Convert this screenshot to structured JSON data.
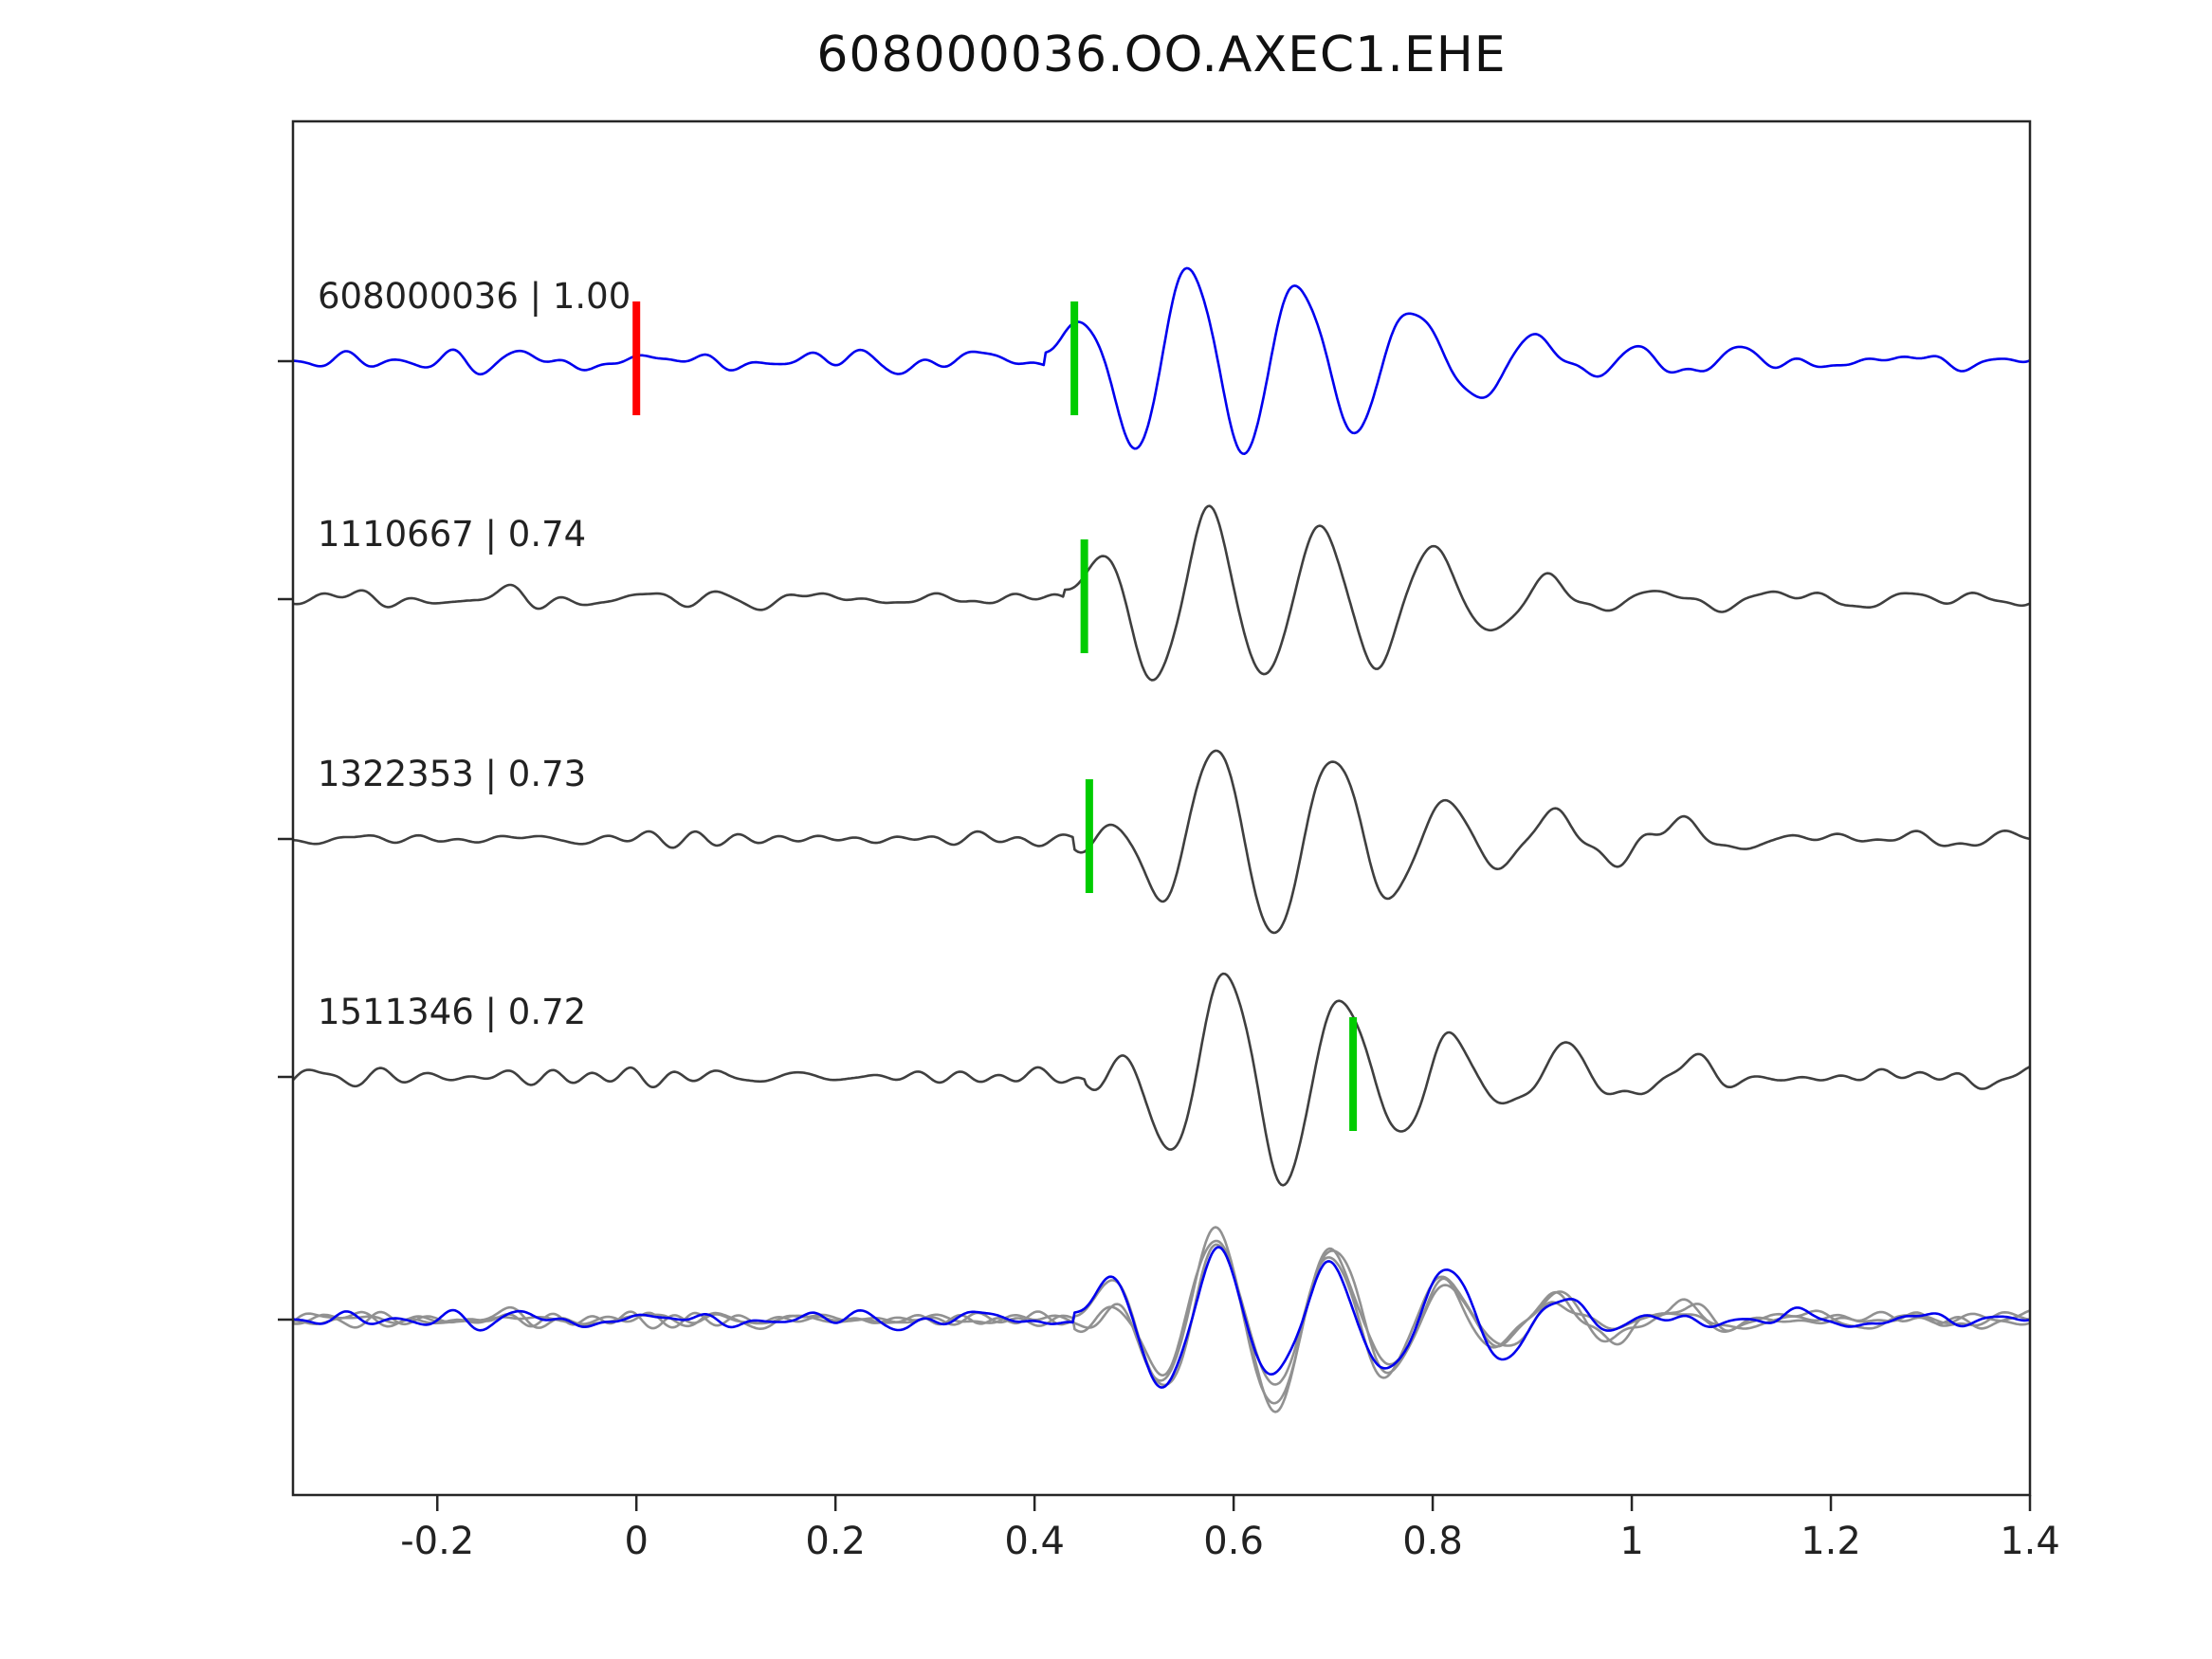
{
  "title": "608000036.OO.AXEC1.EHE",
  "chart_data": {
    "type": "line",
    "title": "608000036.OO.AXEC1.EHE",
    "xlabel": "",
    "ylabel": "",
    "xlim": [
      -0.345,
      1.4
    ],
    "grid": false,
    "legend": "none",
    "x_ticks": [
      -0.2,
      0,
      0.2,
      0.4,
      0.6,
      0.8,
      1,
      1.2,
      1.4
    ],
    "x_tick_labels": [
      "-0.2",
      "0",
      "0.2",
      "0.4",
      "0.6",
      "0.8",
      "1",
      "1.2",
      "1.4"
    ],
    "colors": {
      "template": "#0000ee",
      "candidate": "#3f3f3f",
      "overlay_gray": "#919191",
      "pick_green": "#00cc00",
      "pick_red": "#ff0000",
      "axis": "#262626",
      "text": "#222222"
    },
    "traces": [
      {
        "id": "608000036",
        "correlation": "1.00",
        "label": "608000036 | 1.00",
        "color_role": "template",
        "picks": [
          {
            "x": 0.0,
            "color": "pick_red"
          },
          {
            "x": 0.44,
            "color": "pick_green"
          }
        ],
        "seed": 7,
        "onset": 0.41,
        "amp": 1.0,
        "noise": 0.13
      },
      {
        "id": "1110667",
        "correlation": "0.74",
        "label": "1110667 | 0.74",
        "color_role": "candidate",
        "picks": [
          {
            "x": 0.45,
            "color": "pick_green"
          }
        ],
        "seed": 13,
        "onset": 0.43,
        "amp": 0.96,
        "noise": 0.12
      },
      {
        "id": "1322353",
        "correlation": "0.73",
        "label": "1322353 | 0.73",
        "color_role": "candidate",
        "picks": [
          {
            "x": 0.455,
            "color": "pick_green"
          }
        ],
        "seed": 29,
        "onset": 0.44,
        "amp": 0.92,
        "noise": 0.09
      },
      {
        "id": "1511346",
        "correlation": "0.72",
        "label": "1511346 | 0.72",
        "color_role": "candidate",
        "picks": [
          {
            "x": 0.72,
            "color": "pick_green"
          }
        ],
        "seed": 41,
        "onset": 0.45,
        "amp": 0.97,
        "noise": 0.12
      }
    ],
    "overlay": {
      "description": "all traces superimposed, aligned on pick",
      "aligned_onset": 0.44,
      "gray_trace_ids": [
        "1110667",
        "1322353",
        "1511346"
      ],
      "highlight_trace_id": "608000036",
      "amp": 0.82
    }
  }
}
